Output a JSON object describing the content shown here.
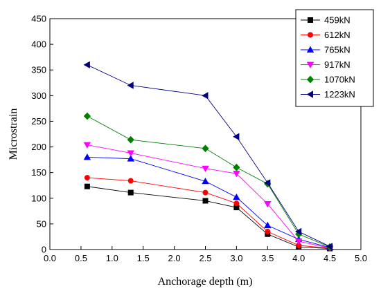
{
  "chart_data": {
    "type": "line",
    "xlabel": "Anchorage depth (m)",
    "ylabel": "Microstrain",
    "xlim": [
      0.0,
      5.0
    ],
    "ylim": [
      0,
      450
    ],
    "x_ticks": [
      "0.0",
      "0.5",
      "1.0",
      "1.5",
      "2.0",
      "2.5",
      "3.0",
      "3.5",
      "4.0",
      "4.5",
      "5.0"
    ],
    "y_ticks": [
      "0",
      "50",
      "100",
      "150",
      "200",
      "250",
      "300",
      "350",
      "400",
      "450"
    ],
    "grid": false,
    "legend_position": "top-right",
    "x": [
      0.6,
      1.3,
      2.5,
      3.0,
      3.5,
      4.0,
      4.5
    ],
    "series": [
      {
        "name": "459kN",
        "color": "#000000",
        "marker": "square",
        "values": [
          123,
          111,
          95,
          82,
          30,
          5,
          2
        ]
      },
      {
        "name": "612kN",
        "color": "#ff0000",
        "marker": "circle",
        "values": [
          140,
          134,
          111,
          90,
          35,
          8,
          3
        ]
      },
      {
        "name": "765kN",
        "color": "#0000ff",
        "marker": "triangle-up",
        "values": [
          180,
          177,
          133,
          102,
          47,
          20,
          4
        ]
      },
      {
        "name": "917kN",
        "color": "#ff00ff",
        "marker": "triangle-down",
        "values": [
          204,
          188,
          158,
          148,
          89,
          16,
          3
        ]
      },
      {
        "name": "1070kN",
        "color": "#008000",
        "marker": "diamond",
        "values": [
          260,
          214,
          197,
          160,
          128,
          30,
          5
        ]
      },
      {
        "name": "1223kN",
        "color": "#000080",
        "marker": "triangle-left",
        "values": [
          360,
          320,
          300,
          220,
          130,
          35,
          6
        ]
      }
    ]
  }
}
